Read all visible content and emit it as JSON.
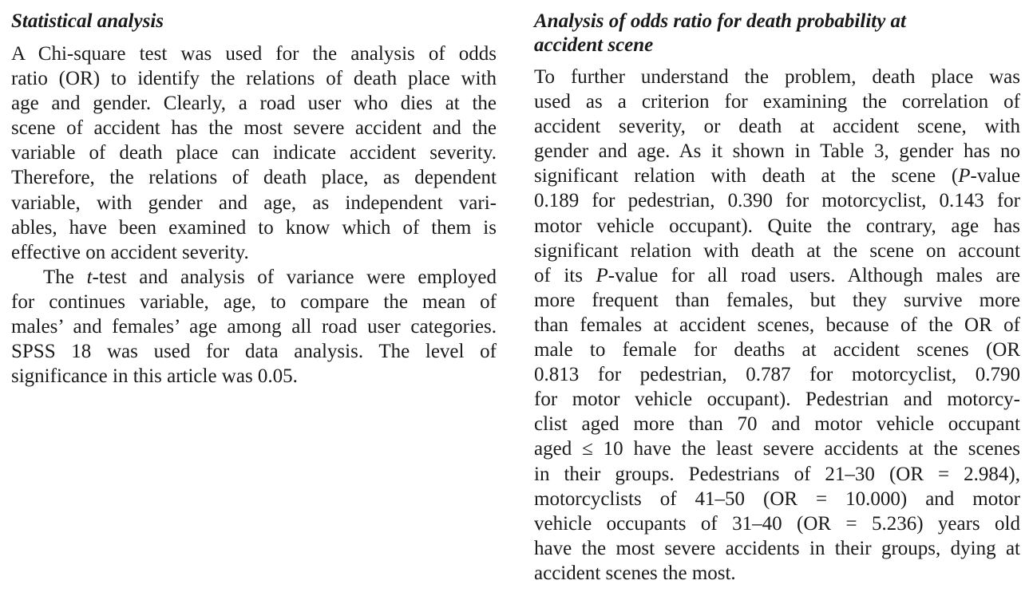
{
  "left_column": {
    "heading": "Statistical analysis",
    "paragraph1_lines": [
      "A Chi-square test was used for the analysis of odds",
      "ratio (OR) to identify the relations of death place with",
      "age and gender. Clearly, a road user who dies at the",
      "scene of accident has the most severe accident and the",
      "variable of death place can indicate accident severity.",
      "Therefore, the relations of death place, as dependent",
      "variable, with gender and age, as independent vari-",
      "ables, have been examined to know which of them is",
      "effective on accident severity."
    ],
    "paragraph2": {
      "line1_pre": "The ",
      "line1_t": "t",
      "line1_post": "-test and analysis of variance were employed",
      "lines": [
        "for continues variable, age, to compare the mean of",
        "males’ and females’ age among all road user categories.",
        "SPSS 18 was used for data analysis. The level of",
        "significance in this article was 0.05."
      ]
    }
  },
  "right_column": {
    "heading_line1": "Analysis of odds ratio for death probability at",
    "heading_line2": "accident scene",
    "lines_a": [
      "To further understand the problem, death place was",
      "used as a criterion for examining the correlation of",
      "accident severity, or death at accident scene, with",
      "gender and age. As it shown in Table 3, gender has no"
    ],
    "line_pvalue": {
      "pre": "significant relation with death at the scene (",
      "p": "P",
      "post": "-value"
    },
    "lines_b": [
      "0.189 for pedestrian, 0.390 for motorcyclist, 0.143 for",
      "motor vehicle occupant). Quite the contrary, age has",
      "significant relation with death at the scene on account"
    ],
    "line_its": {
      "pre": "of its ",
      "p": "P",
      "post": "-value for all road users. Although males are"
    },
    "lines_c": [
      "more frequent than females, but they survive more",
      "than females at accident scenes, because of the OR of",
      "male to female for deaths at accident scenes (OR",
      "0.813 for pedestrian, 0.787 for motorcyclist, 0.790",
      "for motor vehicle occupant). Pedestrian and motorcy-",
      "clist aged more than 70 and motor vehicle occupant",
      "aged ≤ 10 have the least severe accidents at the scenes",
      "in their groups. Pedestrians of 21–30 (OR = 2.984),",
      "motorcyclists of 41–50 (OR = 10.000) and motor",
      "vehicle occupants of 31–40 (OR = 5.236) years old",
      "have the most severe accidents in their groups, dying at",
      "accident scenes the most."
    ]
  }
}
